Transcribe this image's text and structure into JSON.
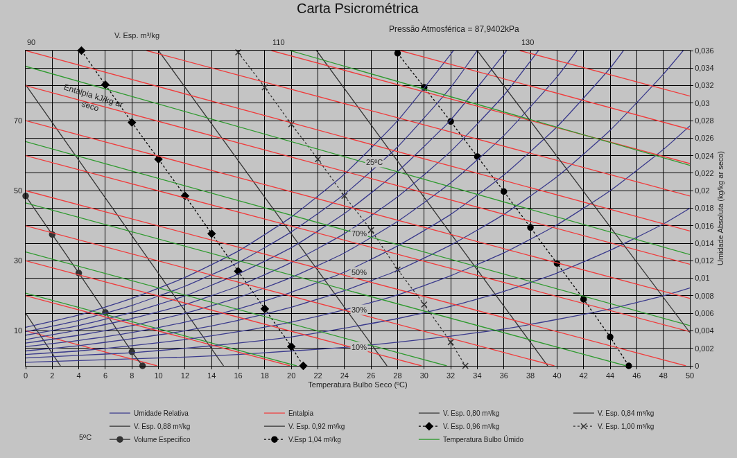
{
  "chart_data": {
    "type": "line",
    "title": "Carta Psicrométrica",
    "subtitle": "Pressão Atmosférica = 87,9402kPa",
    "xlabel": "Temperatura Bulbo Seco (ºC)",
    "ylabel": "Umidade Absoluta (kg/kg ar seco)",
    "xlim": [
      0,
      50
    ],
    "xticks": [
      0,
      2,
      4,
      6,
      8,
      10,
      12,
      14,
      16,
      18,
      20,
      22,
      24,
      26,
      28,
      30,
      32,
      34,
      36,
      38,
      40,
      42,
      44,
      46,
      48,
      50
    ],
    "ylim": [
      0,
      0.036
    ],
    "yticks": [
      {
        "value": 0,
        "label": "0"
      },
      {
        "value": 0.002,
        "label": "0,002"
      },
      {
        "value": 0.004,
        "label": "0,004"
      },
      {
        "value": 0.006,
        "label": "0,006"
      },
      {
        "value": 0.008,
        "label": "0,008"
      },
      {
        "value": 0.01,
        "label": "0,01"
      },
      {
        "value": 0.012,
        "label": "0,012"
      },
      {
        "value": 0.014,
        "label": "0,014"
      },
      {
        "value": 0.016,
        "label": "0,016"
      },
      {
        "value": 0.018,
        "label": "0,018"
      },
      {
        "value": 0.02,
        "label": "0,02"
      },
      {
        "value": 0.022,
        "label": "0,022"
      },
      {
        "value": 0.024,
        "label": "0,024"
      },
      {
        "value": 0.026,
        "label": "0,026"
      },
      {
        "value": 0.028,
        "label": "0,028"
      },
      {
        "value": 0.03,
        "label": "0,03"
      },
      {
        "value": 0.032,
        "label": "0,032"
      },
      {
        "value": 0.034,
        "label": "0,034"
      },
      {
        "value": 0.036,
        "label": "0,036"
      }
    ],
    "grid": true,
    "legend": "bottom",
    "series": [
      {
        "name": "Umidade Relativa",
        "color": "#3a3a8c",
        "x": [
          0,
          4,
          8,
          12,
          16,
          20,
          24,
          28,
          32,
          36,
          40,
          44,
          48,
          50
        ],
        "values": [
          0.0004,
          0.0006,
          0.0008,
          0.001,
          0.0013,
          0.0017,
          0.0021,
          0.0027,
          0.0034,
          0.0042,
          0.0053,
          0.0065,
          0.008,
          0.0089
        ],
        "line_style": "solid",
        "marker": "none"
      },
      {
        "name": "Entalpia",
        "color": "#f03c3c",
        "x": [
          0,
          9.9
        ],
        "values": [
          0.004,
          0
        ],
        "line_style": "solid",
        "marker": "none"
      },
      {
        "name": "V. Esp. 0,80 m³/kg",
        "color": "#333333",
        "x": [
          0,
          2.62
        ],
        "values": [
          0.006,
          0
        ],
        "line_style": "solid",
        "marker": "none"
      },
      {
        "name": "V. Esp. 0,84 m³/kg",
        "color": "#333333",
        "x": [
          0,
          14.9
        ],
        "values": [
          0.0321,
          0
        ],
        "line_style": "solid",
        "marker": "none"
      },
      {
        "name": "V. Esp. 0,88 m³/kg",
        "color": "#333333",
        "x": [
          10.0,
          27.2
        ],
        "values": [
          0.036,
          0
        ],
        "line_style": "solid",
        "marker": "none"
      },
      {
        "name": "V. Esp. 0,92 m³/kg",
        "color": "#333333",
        "x": [
          21.9,
          39.3
        ],
        "values": [
          0.036,
          0
        ],
        "line_style": "solid",
        "marker": "none"
      },
      {
        "name": "V. Esp. 0,96 m³/kg",
        "color": "#000000",
        "x": [
          4.2,
          6,
          8,
          10,
          12,
          14,
          16,
          18,
          20,
          20.9
        ],
        "values": [
          0.036,
          0.0321,
          0.0278,
          0.0236,
          0.0194,
          0.0151,
          0.0108,
          0.0065,
          0.0022,
          0
        ],
        "line_style": "dotted",
        "marker": "diamond"
      },
      {
        "name": "V. Esp. 1,00 m³/kg",
        "color": "#333333",
        "x": [
          16,
          18,
          20,
          22,
          24,
          26,
          28,
          30,
          32,
          33.1
        ],
        "values": [
          0.0358,
          0.0318,
          0.0276,
          0.0236,
          0.0194,
          0.0155,
          0.011,
          0.007,
          0.0027,
          0
        ],
        "line_style": "dotted",
        "marker": "cross"
      },
      {
        "name": "Volume Especifico",
        "color": "#333333",
        "x": [
          0,
          2,
          4,
          6,
          8,
          8.8
        ],
        "values": [
          0.0194,
          0.015,
          0.0106,
          0.0061,
          0.0016,
          0
        ],
        "line_style": "solid",
        "marker": "circle"
      },
      {
        "name": "V.Esp 1,04 m³/kg",
        "color": "#000000",
        "x": [
          28,
          30,
          32,
          34,
          36,
          38,
          40,
          42,
          44,
          45.4
        ],
        "values": [
          0.0357,
          0.0318,
          0.0279,
          0.0239,
          0.0199,
          0.0158,
          0.0117,
          0.0076,
          0.0033,
          0
        ],
        "line_style": "dotted",
        "marker": "circle"
      },
      {
        "name": "Temperatura Bulbo Úmido",
        "color": "#2e9a2e",
        "x": [
          0,
          20.4
        ],
        "values": [
          0.0083,
          0
        ],
        "line_style": "solid",
        "marker": "none"
      },
      {
        "color": "#3a3a8c",
        "x": [
          0,
          4,
          8,
          12,
          16,
          20,
          24,
          28,
          32,
          36,
          40,
          44,
          48,
          50
        ],
        "values": [
          0.0009,
          0.0012,
          0.0015,
          0.002,
          0.0026,
          0.0033,
          0.0043,
          0.0054,
          0.0068,
          0.0085,
          0.0106,
          0.0132,
          0.0162,
          0.018
        ],
        "line_style": "solid",
        "marker": "none"
      },
      {
        "color": "#3a3a8c",
        "x": [
          0,
          4,
          8,
          12,
          16,
          20,
          24,
          28,
          32,
          36,
          40,
          44,
          48,
          50
        ],
        "values": [
          0.0013,
          0.0017,
          0.0023,
          0.003,
          0.0039,
          0.005,
          0.0064,
          0.0081,
          0.0103,
          0.0129,
          0.0161,
          0.02,
          0.0247,
          0.0274
        ],
        "line_style": "solid",
        "marker": "none"
      },
      {
        "color": "#3a3a8c",
        "x": [
          0,
          4,
          8,
          12,
          16,
          20,
          24,
          28,
          32,
          36,
          40,
          44,
          48,
          49.5
        ],
        "values": [
          0.0017,
          0.0023,
          0.0031,
          0.004,
          0.0052,
          0.0067,
          0.0086,
          0.0109,
          0.0138,
          0.0173,
          0.0216,
          0.0269,
          0.0333,
          0.036
        ],
        "line_style": "solid",
        "marker": "none"
      },
      {
        "color": "#3a3a8c",
        "x": [
          0,
          4,
          8,
          12,
          16,
          20,
          24,
          28,
          32,
          36,
          40,
          44,
          45.0
        ],
        "values": [
          0.0022,
          0.0029,
          0.0038,
          0.005,
          0.0065,
          0.0084,
          0.0107,
          0.0137,
          0.0173,
          0.0218,
          0.0273,
          0.034,
          0.036
        ],
        "line_style": "solid",
        "marker": "none"
      },
      {
        "color": "#3a3a8c",
        "x": [
          0,
          4,
          8,
          12,
          16,
          20,
          24,
          28,
          32,
          36,
          40,
          41.5
        ],
        "values": [
          0.0026,
          0.0035,
          0.0046,
          0.006,
          0.0078,
          0.0101,
          0.0129,
          0.0165,
          0.0209,
          0.0263,
          0.033,
          0.036
        ],
        "line_style": "solid",
        "marker": "none"
      },
      {
        "color": "#3a3a8c",
        "x": [
          0,
          4,
          8,
          12,
          16,
          20,
          24,
          28,
          32,
          36,
          38.6
        ],
        "values": [
          0.003,
          0.0041,
          0.0054,
          0.007,
          0.0091,
          0.0118,
          0.0151,
          0.0193,
          0.0245,
          0.0309,
          0.036
        ],
        "line_style": "solid",
        "marker": "none"
      },
      {
        "color": "#3a3a8c",
        "x": [
          0,
          4,
          8,
          12,
          16,
          20,
          24,
          28,
          32,
          36,
          36.2
        ],
        "values": [
          0.0035,
          0.0046,
          0.0061,
          0.008,
          0.0105,
          0.0135,
          0.0174,
          0.0222,
          0.0281,
          0.0356,
          0.036
        ],
        "line_style": "solid",
        "marker": "none"
      },
      {
        "color": "#3a3a8c",
        "x": [
          0,
          4,
          8,
          12,
          16,
          20,
          24,
          28,
          32,
          34.0
        ],
        "values": [
          0.0039,
          0.0052,
          0.0069,
          0.0091,
          0.0118,
          0.0153,
          0.0196,
          0.025,
          0.0318,
          0.036
        ],
        "line_style": "solid",
        "marker": "none"
      },
      {
        "color": "#3a3a8c",
        "x": [
          0,
          4,
          8,
          12,
          16,
          20,
          24,
          28,
          32,
          32.2
        ],
        "values": [
          0.0044,
          0.0058,
          0.0077,
          0.0101,
          0.0131,
          0.017,
          0.0219,
          0.028,
          0.0356,
          0.036
        ],
        "line_style": "solid",
        "marker": "none"
      },
      {
        "color": "#f03c3c",
        "x": [
          0,
          19.9
        ],
        "values": [
          0.008,
          0
        ],
        "line_style": "solid",
        "marker": "none"
      },
      {
        "color": "#f03c3c",
        "x": [
          0,
          29.8
        ],
        "values": [
          0.012,
          0
        ],
        "line_style": "solid",
        "marker": "none"
      },
      {
        "color": "#f03c3c",
        "x": [
          0,
          39.8
        ],
        "values": [
          0.016,
          0
        ],
        "line_style": "solid",
        "marker": "none"
      },
      {
        "color": "#f03c3c",
        "x": [
          0,
          49.7
        ],
        "values": [
          0.02,
          0
        ],
        "line_style": "solid",
        "marker": "none"
      },
      {
        "color": "#f03c3c",
        "x": [
          0,
          50
        ],
        "values": [
          0.024,
          0.0039
        ],
        "line_style": "solid",
        "marker": "none"
      },
      {
        "color": "#f03c3c",
        "x": [
          0,
          50
        ],
        "values": [
          0.028,
          0.0077
        ],
        "line_style": "solid",
        "marker": "none"
      },
      {
        "color": "#f03c3c",
        "x": [
          0,
          50
        ],
        "values": [
          0.032,
          0.0116
        ],
        "line_style": "solid",
        "marker": "none"
      },
      {
        "color": "#f03c3c",
        "x": [
          0,
          50
        ],
        "values": [
          0.036,
          0.0154
        ],
        "line_style": "solid",
        "marker": "none"
      },
      {
        "color": "#f03c3c",
        "x": [
          9.1,
          50
        ],
        "values": [
          0.036,
          0.0194
        ],
        "line_style": "solid",
        "marker": "none"
      },
      {
        "color": "#f03c3c",
        "x": [
          18.5,
          50
        ],
        "values": [
          0.036,
          0.0231
        ],
        "line_style": "solid",
        "marker": "none"
      },
      {
        "color": "#f03c3c",
        "x": [
          28.2,
          50
        ],
        "values": [
          0.036,
          0.027
        ],
        "line_style": "solid",
        "marker": "none"
      },
      {
        "color": "#f03c3c",
        "x": [
          37.2,
          50
        ],
        "values": [
          0.036,
          0.0308
        ],
        "line_style": "solid",
        "marker": "none"
      },
      {
        "color": "#2e9a2e",
        "x": [
          0,
          31.7
        ],
        "values": [
          0.013,
          0
        ],
        "line_style": "solid",
        "marker": "none"
      },
      {
        "color": "#2e9a2e",
        "x": [
          0,
          45.2
        ],
        "values": [
          0.0186,
          0
        ],
        "line_style": "solid",
        "marker": "none"
      },
      {
        "color": "#2e9a2e",
        "x": [
          0,
          50
        ],
        "values": [
          0.0256,
          0.0046
        ],
        "line_style": "solid",
        "marker": "none"
      },
      {
        "color": "#2e9a2e",
        "x": [
          0,
          50
        ],
        "values": [
          0.0342,
          0.0127
        ],
        "line_style": "solid",
        "marker": "none"
      },
      {
        "color": "#2e9a2e",
        "x": [
          19.9,
          50
        ],
        "values": [
          0.036,
          0.0229
        ],
        "line_style": "solid",
        "marker": "none"
      },
      {
        "color": "#333333",
        "x": [
          34.0,
          50
        ],
        "values": [
          0.036,
          0.0038
        ],
        "line_style": "solid",
        "marker": "none"
      }
    ],
    "annotations": [
      {
        "text": "Entalpia kJ/kg ar\nseco",
        "x": 5.0,
        "y": 0.0302
      },
      "V. Esp. m³/kg",
      "5ºC",
      {
        "text": "10",
        "x": 0,
        "y": 0.004
      },
      {
        "text": "30",
        "x": 0,
        "y": 0.012
      },
      {
        "text": "50",
        "x": 0,
        "y": 0.02
      },
      {
        "text": "70",
        "x": 0,
        "y": 0.028
      },
      {
        "text": "90",
        "x": 0,
        "y": 0.036
      },
      {
        "text": "110",
        "x": 18.5,
        "y": 0.036
      },
      {
        "text": "130",
        "x": 37.2,
        "y": 0.036
      },
      {
        "text": "25ºC",
        "x": 25.1,
        "y": 0.0233
      },
      {
        "text": "70%",
        "x": 24,
        "y": 0.0151
      },
      {
        "text": "50%",
        "x": 24,
        "y": 0.0107
      },
      {
        "text": "30%",
        "x": 24,
        "y": 0.0064
      },
      {
        "text": "10%",
        "x": 24,
        "y": 0.0021
      }
    ]
  }
}
